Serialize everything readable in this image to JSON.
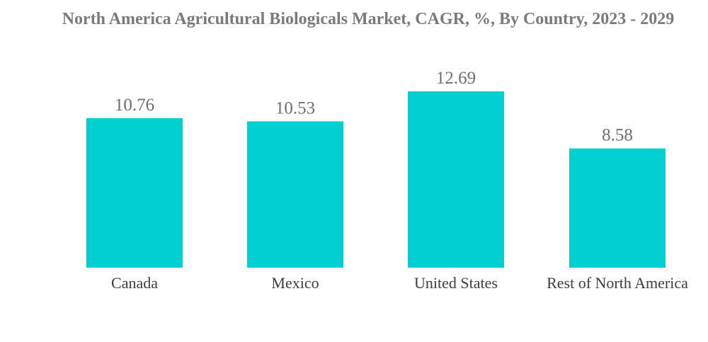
{
  "chart_data": {
    "type": "bar",
    "title": "North America Agricultural Biologicals Market, CAGR, %, By Country, 2023 - 2029",
    "categories": [
      "Canada",
      "Mexico",
      "United States",
      "Rest of North America"
    ],
    "values": [
      10.76,
      10.53,
      12.69,
      8.58
    ],
    "value_labels": [
      "10.76",
      "10.53",
      "12.69",
      "8.58"
    ],
    "bar_color": "#00CED1",
    "ylim": [
      0,
      12.69
    ],
    "xlabel": "",
    "ylabel": "",
    "grid": false,
    "legend": "none"
  }
}
